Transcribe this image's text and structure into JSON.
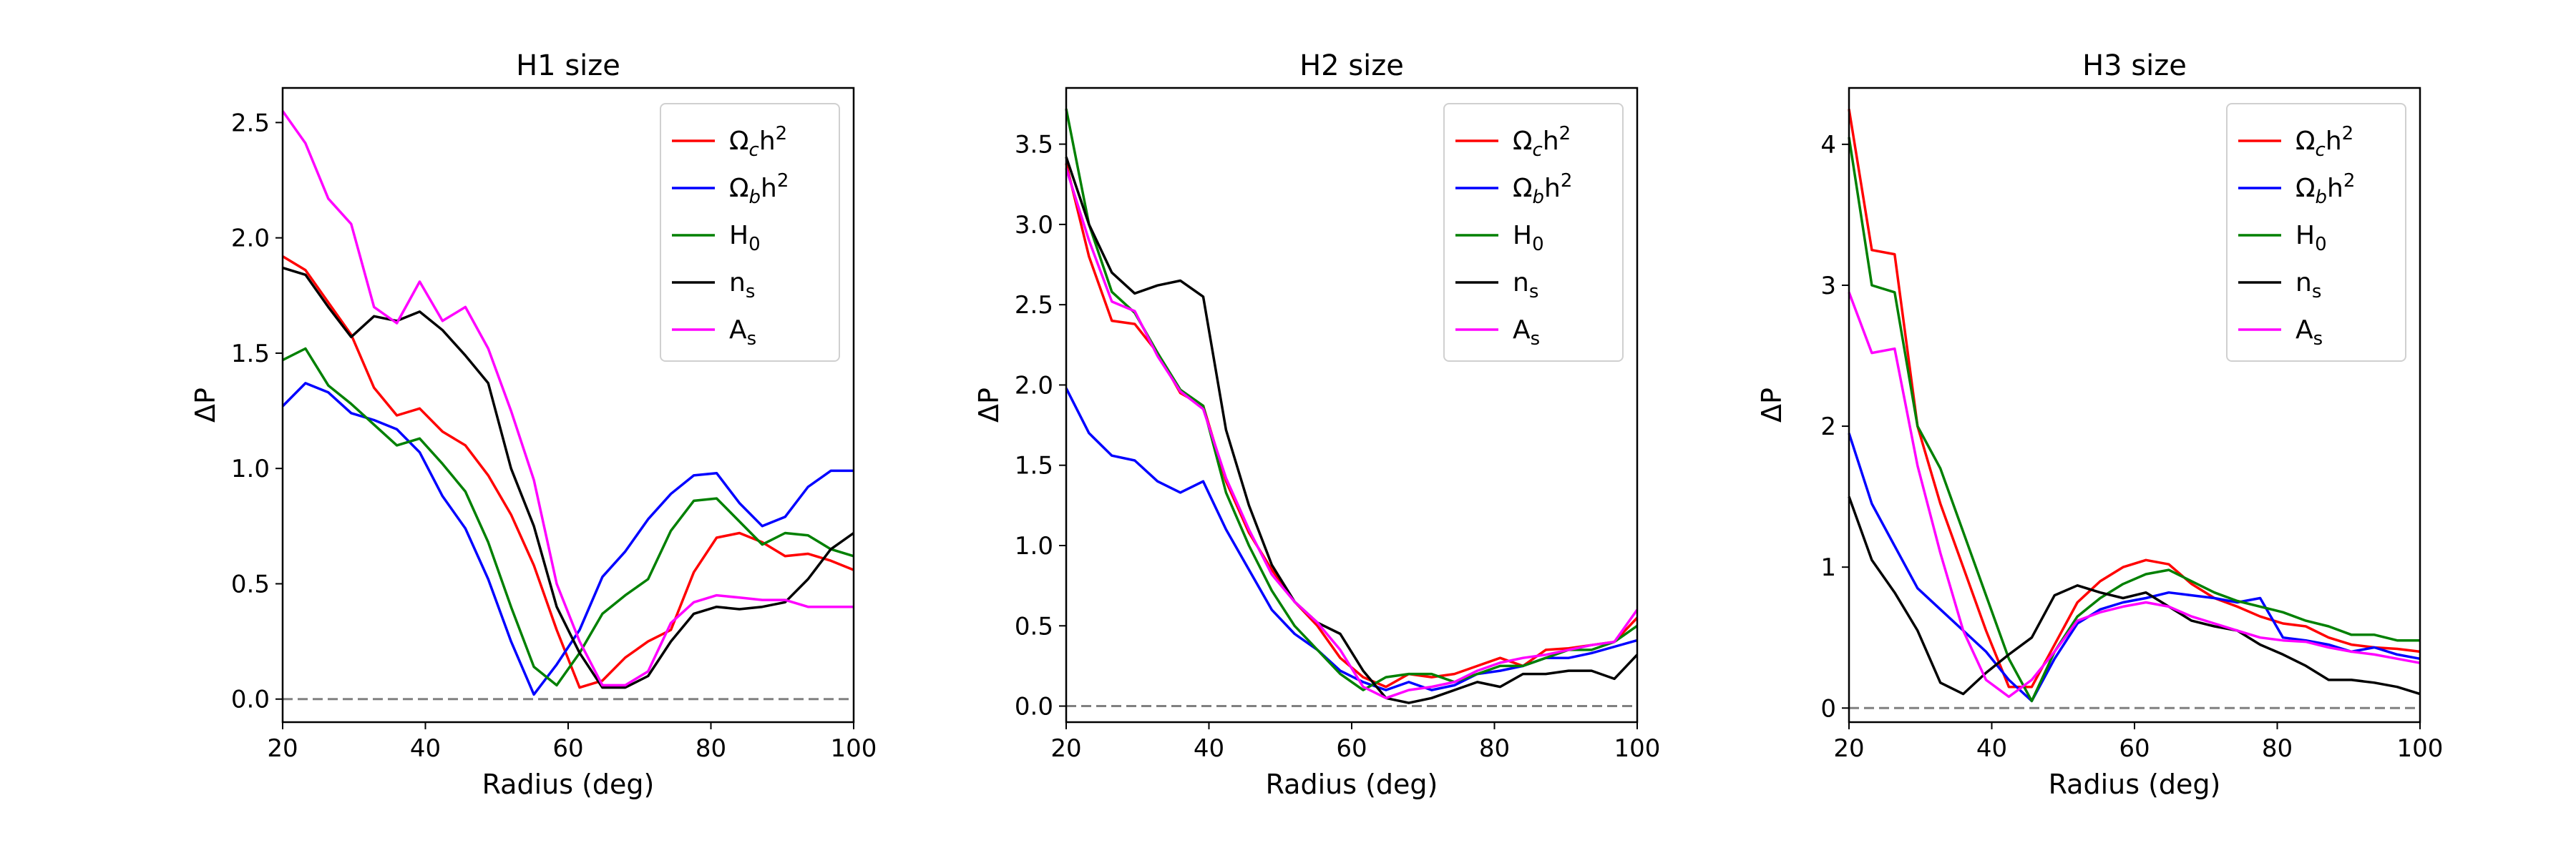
{
  "chart_data": [
    {
      "type": "line",
      "title": "H1 size",
      "xlabel": "Radius (deg)",
      "ylabel": "ΔP",
      "xlim": [
        20,
        100
      ],
      "ylim": [
        -0.1,
        2.65
      ],
      "xticks": [
        20,
        40,
        60,
        80,
        100
      ],
      "yticks": [
        0.0,
        0.5,
        1.0,
        1.5,
        2.0,
        2.5
      ],
      "ytick_decimals": 1,
      "x": [
        20,
        23.2,
        26.4,
        29.6,
        32.8,
        36,
        39.2,
        42.4,
        45.6,
        48.8,
        52,
        55.2,
        58.4,
        61.6,
        64.8,
        68,
        71.2,
        74.4,
        77.6,
        80.8,
        84,
        87.2,
        90.4,
        93.6,
        96.8,
        100
      ],
      "series": [
        {
          "name": "Ωch²",
          "color": "#ff0000",
          "values": [
            1.92,
            1.86,
            1.72,
            1.58,
            1.35,
            1.23,
            1.26,
            1.16,
            1.1,
            0.97,
            0.8,
            0.58,
            0.3,
            0.05,
            0.08,
            0.18,
            0.25,
            0.3,
            0.55,
            0.7,
            0.72,
            0.68,
            0.62,
            0.63,
            0.6,
            0.56
          ]
        },
        {
          "name": "Ωbh²",
          "color": "#0000ff",
          "values": [
            1.27,
            1.37,
            1.33,
            1.24,
            1.21,
            1.17,
            1.07,
            0.88,
            0.74,
            0.52,
            0.25,
            0.02,
            0.15,
            0.3,
            0.53,
            0.64,
            0.78,
            0.89,
            0.97,
            0.98,
            0.85,
            0.75,
            0.79,
            0.92,
            0.99,
            0.99
          ]
        },
        {
          "name": "H₀",
          "color": "#008000",
          "values": [
            1.47,
            1.52,
            1.36,
            1.28,
            1.19,
            1.1,
            1.13,
            1.02,
            0.9,
            0.68,
            0.4,
            0.14,
            0.06,
            0.2,
            0.37,
            0.45,
            0.52,
            0.73,
            0.86,
            0.87,
            0.77,
            0.67,
            0.72,
            0.71,
            0.65,
            0.62
          ]
        },
        {
          "name": "nₛ",
          "color": "#000000",
          "values": [
            1.87,
            1.84,
            1.7,
            1.57,
            1.66,
            1.64,
            1.68,
            1.6,
            1.49,
            1.37,
            1.0,
            0.75,
            0.4,
            0.2,
            0.05,
            0.05,
            0.1,
            0.25,
            0.37,
            0.4,
            0.39,
            0.4,
            0.42,
            0.52,
            0.65,
            0.72
          ]
        },
        {
          "name": "Aₛ",
          "color": "#ff00ff",
          "values": [
            2.55,
            2.41,
            2.17,
            2.06,
            1.7,
            1.63,
            1.81,
            1.64,
            1.7,
            1.52,
            1.25,
            0.95,
            0.5,
            0.25,
            0.06,
            0.06,
            0.12,
            0.33,
            0.42,
            0.45,
            0.44,
            0.43,
            0.43,
            0.4,
            0.4,
            0.4
          ]
        }
      ]
    },
    {
      "type": "line",
      "title": "H2 size",
      "xlabel": "Radius (deg)",
      "ylabel": "ΔP",
      "xlim": [
        20,
        100
      ],
      "ylim": [
        -0.1,
        3.85
      ],
      "xticks": [
        20,
        40,
        60,
        80,
        100
      ],
      "yticks": [
        0.0,
        0.5,
        1.0,
        1.5,
        2.0,
        2.5,
        3.0,
        3.5
      ],
      "ytick_decimals": 1,
      "x": [
        20,
        23.2,
        26.4,
        29.6,
        32.8,
        36,
        39.2,
        42.4,
        45.6,
        48.8,
        52,
        55.2,
        58.4,
        61.6,
        64.8,
        68,
        71.2,
        74.4,
        77.6,
        80.8,
        84,
        87.2,
        90.4,
        93.6,
        96.8,
        100
      ],
      "series": [
        {
          "name": "Ωch²",
          "color": "#ff0000",
          "values": [
            3.38,
            2.8,
            2.4,
            2.38,
            2.2,
            1.95,
            1.87,
            1.4,
            1.08,
            0.85,
            0.65,
            0.5,
            0.3,
            0.18,
            0.12,
            0.2,
            0.18,
            0.2,
            0.25,
            0.3,
            0.25,
            0.35,
            0.36,
            0.38,
            0.4,
            0.55
          ]
        },
        {
          "name": "Ωbh²",
          "color": "#0000ff",
          "values": [
            1.98,
            1.7,
            1.56,
            1.53,
            1.4,
            1.33,
            1.4,
            1.1,
            0.85,
            0.6,
            0.45,
            0.35,
            0.22,
            0.15,
            0.1,
            0.15,
            0.1,
            0.13,
            0.2,
            0.22,
            0.25,
            0.3,
            0.3,
            0.33,
            0.37,
            0.41
          ]
        },
        {
          "name": "H₀",
          "color": "#008000",
          "values": [
            3.72,
            3.0,
            2.58,
            2.45,
            2.2,
            1.97,
            1.87,
            1.33,
            1.0,
            0.72,
            0.5,
            0.35,
            0.2,
            0.1,
            0.18,
            0.2,
            0.2,
            0.15,
            0.2,
            0.25,
            0.25,
            0.3,
            0.35,
            0.35,
            0.4,
            0.5
          ]
        },
        {
          "name": "nₛ",
          "color": "#000000",
          "values": [
            3.42,
            3.0,
            2.7,
            2.57,
            2.62,
            2.65,
            2.55,
            1.72,
            1.25,
            0.88,
            0.65,
            0.52,
            0.45,
            0.22,
            0.05,
            0.02,
            0.05,
            0.1,
            0.15,
            0.12,
            0.2,
            0.2,
            0.22,
            0.22,
            0.17,
            0.32
          ]
        },
        {
          "name": "Aₛ",
          "color": "#ff00ff",
          "values": [
            3.35,
            2.9,
            2.52,
            2.46,
            2.18,
            1.96,
            1.85,
            1.42,
            1.1,
            0.82,
            0.65,
            0.52,
            0.35,
            0.12,
            0.05,
            0.1,
            0.12,
            0.15,
            0.22,
            0.27,
            0.3,
            0.32,
            0.35,
            0.38,
            0.4,
            0.6
          ]
        }
      ]
    },
    {
      "type": "line",
      "title": "H3 size",
      "xlabel": "Radius (deg)",
      "ylabel": "ΔP",
      "xlim": [
        20,
        100
      ],
      "ylim": [
        -0.1,
        4.4
      ],
      "xticks": [
        20,
        40,
        60,
        80,
        100
      ],
      "yticks": [
        0,
        1,
        2,
        3,
        4
      ],
      "ytick_decimals": 0,
      "x": [
        20,
        23.2,
        26.4,
        29.6,
        32.8,
        36,
        39.2,
        42.4,
        45.6,
        48.8,
        52,
        55.2,
        58.4,
        61.6,
        64.8,
        68,
        71.2,
        74.4,
        77.6,
        80.8,
        84,
        87.2,
        90.4,
        93.6,
        96.8,
        100
      ],
      "series": [
        {
          "name": "Ωch²",
          "color": "#ff0000",
          "values": [
            4.25,
            3.25,
            3.22,
            2.0,
            1.45,
            1.0,
            0.55,
            0.15,
            0.15,
            0.45,
            0.75,
            0.9,
            1.0,
            1.05,
            1.02,
            0.88,
            0.78,
            0.72,
            0.65,
            0.6,
            0.58,
            0.5,
            0.45,
            0.43,
            0.42,
            0.4
          ]
        },
        {
          "name": "Ωbh²",
          "color": "#0000ff",
          "values": [
            1.95,
            1.45,
            1.15,
            0.85,
            0.7,
            0.55,
            0.4,
            0.2,
            0.05,
            0.35,
            0.6,
            0.7,
            0.75,
            0.78,
            0.82,
            0.8,
            0.78,
            0.75,
            0.78,
            0.5,
            0.48,
            0.45,
            0.4,
            0.43,
            0.38,
            0.35
          ]
        },
        {
          "name": "H₀",
          "color": "#008000",
          "values": [
            4.05,
            3.0,
            2.95,
            2.0,
            1.7,
            1.25,
            0.8,
            0.35,
            0.05,
            0.4,
            0.65,
            0.78,
            0.88,
            0.95,
            0.98,
            0.9,
            0.82,
            0.76,
            0.72,
            0.68,
            0.62,
            0.58,
            0.52,
            0.52,
            0.48,
            0.48
          ]
        },
        {
          "name": "nₛ",
          "color": "#000000",
          "values": [
            1.5,
            1.05,
            0.82,
            0.55,
            0.18,
            0.1,
            0.25,
            0.38,
            0.5,
            0.8,
            0.87,
            0.82,
            0.78,
            0.82,
            0.72,
            0.62,
            0.58,
            0.55,
            0.45,
            0.38,
            0.3,
            0.2,
            0.2,
            0.18,
            0.15,
            0.1
          ]
        },
        {
          "name": "Aₛ",
          "color": "#ff00ff",
          "values": [
            2.95,
            2.52,
            2.55,
            1.72,
            1.1,
            0.55,
            0.2,
            0.08,
            0.2,
            0.4,
            0.62,
            0.68,
            0.72,
            0.75,
            0.72,
            0.65,
            0.6,
            0.55,
            0.5,
            0.48,
            0.47,
            0.43,
            0.4,
            0.38,
            0.35,
            0.32
          ]
        }
      ]
    }
  ]
}
